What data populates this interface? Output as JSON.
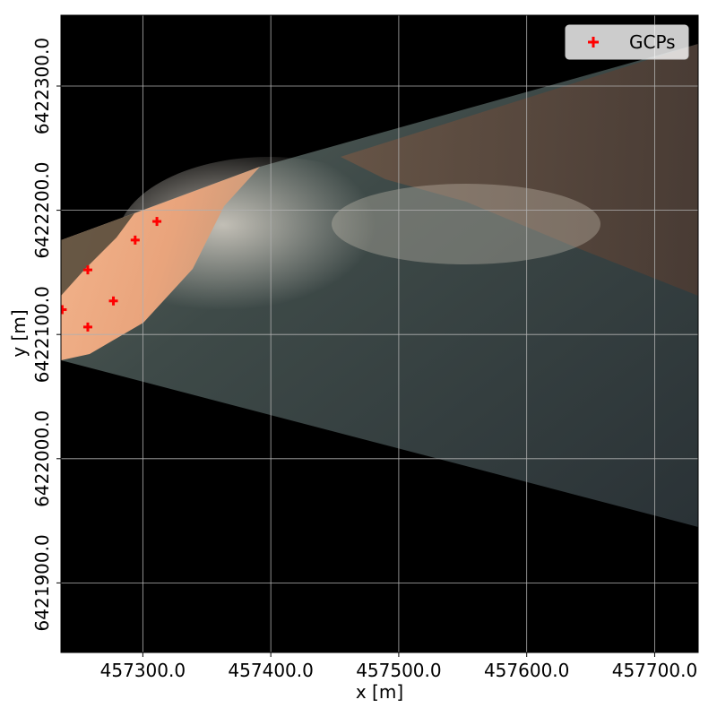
{
  "chart_data": {
    "type": "scatter",
    "xlabel": "x [m]",
    "ylabel": "y [m]",
    "xlim": [
      457236,
      457734
    ],
    "ylim": [
      6421844,
      6422357
    ],
    "xticks": [
      457300,
      457400,
      457500,
      457600,
      457700
    ],
    "xtick_labels": [
      "457300.0",
      "457400.0",
      "457500.0",
      "457600.0",
      "457700.0"
    ],
    "yticks": [
      6421900,
      6422000,
      6422100,
      6422200,
      6422300
    ],
    "ytick_labels": [
      "6421900.0",
      "6422000.0",
      "6422100.0",
      "6422200.0",
      "6422300.0"
    ],
    "grid": true,
    "legend": {
      "location": "upper-right",
      "entries": [
        "GCPs"
      ]
    },
    "background": "orthorectified camera image (beach, surf zone and sea) on black",
    "series": [
      {
        "name": "GCPs",
        "marker": "+",
        "color": "#ff0000",
        "points": [
          {
            "x": 457237,
            "y": 6422120
          },
          {
            "x": 457257,
            "y": 6422152
          },
          {
            "x": 457257,
            "y": 6422106
          },
          {
            "x": 457277,
            "y": 6422127
          },
          {
            "x": 457294,
            "y": 6422176
          },
          {
            "x": 457311,
            "y": 6422191
          }
        ]
      }
    ]
  }
}
